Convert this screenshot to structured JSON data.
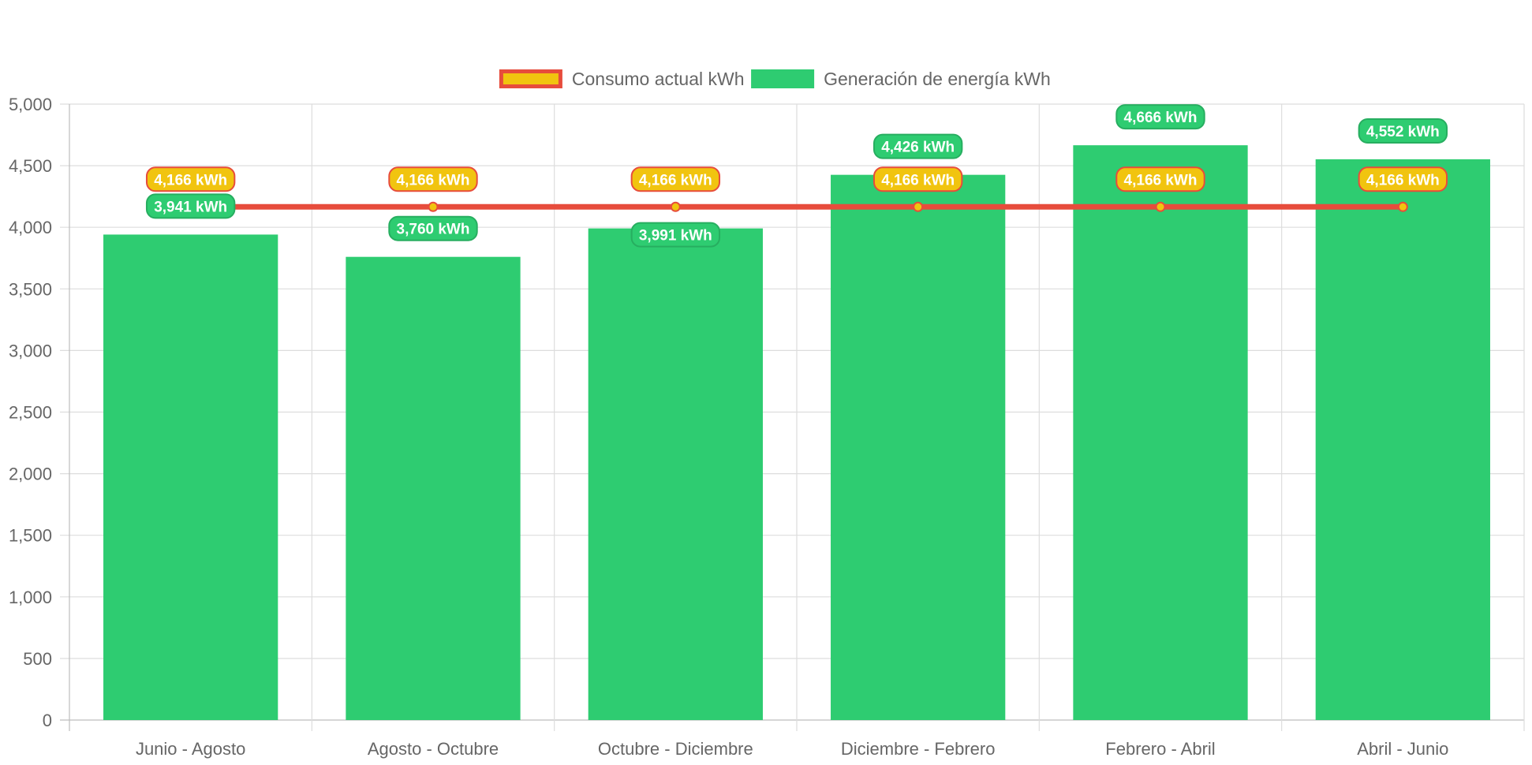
{
  "chart_data": {
    "type": "bar",
    "categories": [
      "Junio - Agosto",
      "Agosto - Octubre",
      "Octubre - Diciembre",
      "Diciembre - Febrero",
      "Febrero - Abril",
      "Abril - Junio"
    ],
    "series": [
      {
        "name": "Consumo actual kWh",
        "type": "line",
        "values": [
          4166,
          4166,
          4166,
          4166,
          4166,
          4166
        ],
        "labels": [
          "4,166 kWh",
          "4,166 kWh",
          "4,166 kWh",
          "4,166 kWh",
          "4,166 kWh",
          "4,166 kWh"
        ],
        "line_color": "#e74c3c",
        "point_color": "#f1c40f"
      },
      {
        "name": "Generación de energía kWh",
        "type": "bar",
        "values": [
          3941,
          3760,
          3991,
          4426,
          4666,
          4552
        ],
        "labels": [
          "3,941 kWh",
          "3,760 kWh",
          "3,991 kWh",
          "4,426 kWh",
          "4,666 kWh",
          "4,552 kWh"
        ],
        "color": "#2ecc71"
      }
    ],
    "title": "",
    "xlabel": "",
    "ylabel": "",
    "ylim": [
      0,
      5000
    ],
    "y_ticks": [
      "0",
      "500",
      "1,000",
      "1,500",
      "2,000",
      "2,500",
      "3,000",
      "3,500",
      "4,000",
      "4,500",
      "5,000"
    ],
    "y_tick_values": [
      0,
      500,
      1000,
      1500,
      2000,
      2500,
      3000,
      3500,
      4000,
      4500,
      5000
    ],
    "grid": true,
    "legend": "top-center"
  }
}
